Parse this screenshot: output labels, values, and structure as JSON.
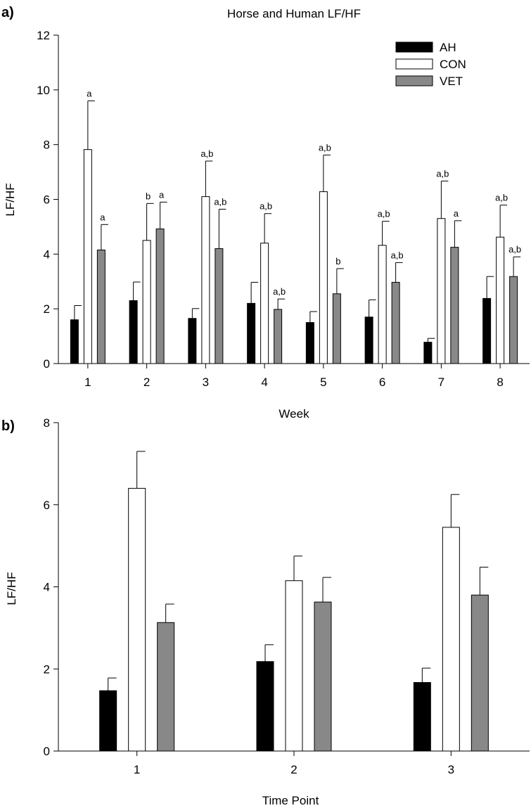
{
  "figure": {
    "panel_a_label": "a)",
    "panel_b_label": "b)"
  },
  "chart_data": [
    {
      "type": "bar",
      "title": "Horse and Human LF/HF",
      "xlabel": "Week",
      "ylabel": "LF/HF",
      "ylim": [
        0,
        12
      ],
      "yticks": [
        0,
        2,
        4,
        6,
        8,
        10,
        12
      ],
      "categories": [
        "1",
        "2",
        "3",
        "4",
        "5",
        "6",
        "7",
        "8"
      ],
      "legend_position": "top-right",
      "series": [
        {
          "name": "AH",
          "color": "#000000",
          "values": [
            1.6,
            2.3,
            1.65,
            2.2,
            1.5,
            1.7,
            0.78,
            2.38
          ],
          "errors": [
            0.52,
            0.68,
            0.36,
            0.77,
            0.4,
            0.63,
            0.14,
            0.8
          ],
          "sig_labels": [
            "",
            "",
            "",
            "",
            "",
            "",
            "",
            ""
          ]
        },
        {
          "name": "CON",
          "color": "#ffffff",
          "values": [
            7.82,
            4.5,
            6.1,
            4.4,
            6.28,
            4.32,
            5.3,
            4.62
          ],
          "errors": [
            1.78,
            1.35,
            1.3,
            1.08,
            1.34,
            0.88,
            1.37,
            1.17
          ],
          "sig_labels": [
            "a",
            "b",
            "a,b",
            "a,b",
            "a,b",
            "a,b",
            "a,b",
            "a,b"
          ]
        },
        {
          "name": "VET",
          "color": "#888888",
          "values": [
            4.15,
            4.92,
            4.2,
            1.98,
            2.55,
            2.97,
            4.25,
            3.18
          ],
          "errors": [
            0.93,
            0.98,
            1.44,
            0.38,
            0.92,
            0.72,
            0.97,
            0.72
          ],
          "sig_labels": [
            "a",
            "a",
            "a,b",
            "a,b",
            "b",
            "a,b",
            "a",
            "a,b"
          ]
        }
      ]
    },
    {
      "type": "bar",
      "title": "",
      "xlabel": "Time Point",
      "ylabel": "LF/HF",
      "ylim": [
        0,
        8
      ],
      "yticks": [
        0,
        2,
        4,
        6,
        8
      ],
      "categories": [
        "1",
        "2",
        "3"
      ],
      "series": [
        {
          "name": "AH",
          "color": "#000000",
          "values": [
            1.47,
            2.18,
            1.67
          ],
          "errors": [
            0.31,
            0.41,
            0.35
          ]
        },
        {
          "name": "CON",
          "color": "#ffffff",
          "values": [
            6.4,
            4.15,
            5.45
          ],
          "errors": [
            0.9,
            0.6,
            0.8
          ]
        },
        {
          "name": "VET",
          "color": "#888888",
          "values": [
            3.13,
            3.63,
            3.8
          ],
          "errors": [
            0.45,
            0.6,
            0.68
          ]
        }
      ]
    }
  ]
}
